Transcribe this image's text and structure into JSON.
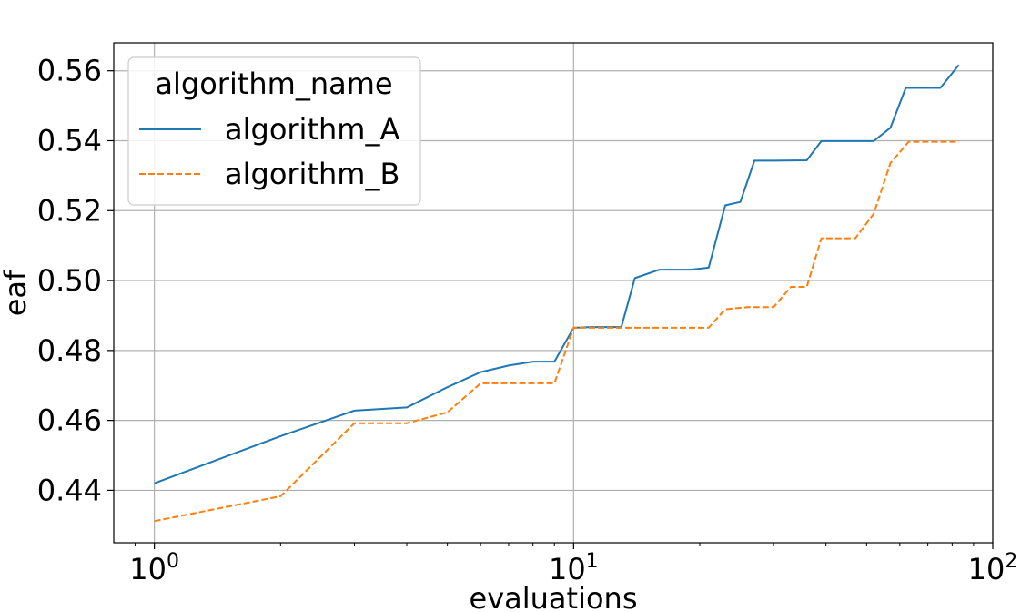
{
  "chart_data": {
    "type": "line",
    "xlabel": "evaluations",
    "ylabel": "eaf",
    "xscale": "log",
    "xlim": [
      0.8,
      100
    ],
    "ylim": [
      0.425,
      0.568
    ],
    "grid": true,
    "legend": {
      "title": "algorithm_name",
      "placement": "top-left"
    },
    "x_ticks": [
      {
        "value": 1,
        "base": "10",
        "exp": "0"
      },
      {
        "value": 10,
        "base": "10",
        "exp": "1"
      },
      {
        "value": 100,
        "base": "10",
        "exp": "2"
      }
    ],
    "y_ticks": [
      {
        "value": 0.44,
        "label": "0.44"
      },
      {
        "value": 0.46,
        "label": "0.46"
      },
      {
        "value": 0.48,
        "label": "0.48"
      },
      {
        "value": 0.5,
        "label": "0.50"
      },
      {
        "value": 0.52,
        "label": "0.52"
      },
      {
        "value": 0.54,
        "label": "0.54"
      },
      {
        "value": 0.56,
        "label": "0.56"
      }
    ],
    "series": [
      {
        "name": "algorithm_A",
        "color": "#1f77b4",
        "dash": "solid",
        "points": [
          [
            1,
            0.442
          ],
          [
            2,
            0.4555
          ],
          [
            3,
            0.4628
          ],
          [
            4,
            0.4637
          ],
          [
            5,
            0.4695
          ],
          [
            6,
            0.4738
          ],
          [
            7,
            0.4757
          ],
          [
            8,
            0.4768
          ],
          [
            9,
            0.4768
          ],
          [
            10,
            0.4865
          ],
          [
            11,
            0.4867
          ],
          [
            12,
            0.4867
          ],
          [
            13,
            0.4867
          ],
          [
            14,
            0.5007
          ],
          [
            16,
            0.5031
          ],
          [
            19,
            0.5031
          ],
          [
            21,
            0.5037
          ],
          [
            23,
            0.5215
          ],
          [
            25,
            0.5225
          ],
          [
            27,
            0.5343
          ],
          [
            30,
            0.5343
          ],
          [
            36,
            0.5344
          ],
          [
            39,
            0.5399
          ],
          [
            47,
            0.5399
          ],
          [
            52,
            0.5399
          ],
          [
            57,
            0.5437
          ],
          [
            62,
            0.5551
          ],
          [
            75,
            0.5551
          ],
          [
            83,
            0.5617
          ]
        ]
      },
      {
        "name": "algorithm_B",
        "color": "#ff7f0e",
        "dash": "dashed",
        "points": [
          [
            1,
            0.4312
          ],
          [
            2,
            0.4383
          ],
          [
            3,
            0.4592
          ],
          [
            4,
            0.4592
          ],
          [
            5,
            0.4623
          ],
          [
            6,
            0.4706
          ],
          [
            7,
            0.4706
          ],
          [
            8,
            0.4706
          ],
          [
            9,
            0.4706
          ],
          [
            10,
            0.4865
          ],
          [
            13,
            0.4865
          ],
          [
            16,
            0.4865
          ],
          [
            21,
            0.4865
          ],
          [
            23,
            0.4918
          ],
          [
            26,
            0.4924
          ],
          [
            30,
            0.4924
          ],
          [
            33,
            0.4982
          ],
          [
            36,
            0.4982
          ],
          [
            39,
            0.5121
          ],
          [
            47,
            0.5121
          ],
          [
            52,
            0.5191
          ],
          [
            57,
            0.5336
          ],
          [
            63,
            0.5397
          ],
          [
            83,
            0.5397
          ]
        ]
      }
    ]
  }
}
